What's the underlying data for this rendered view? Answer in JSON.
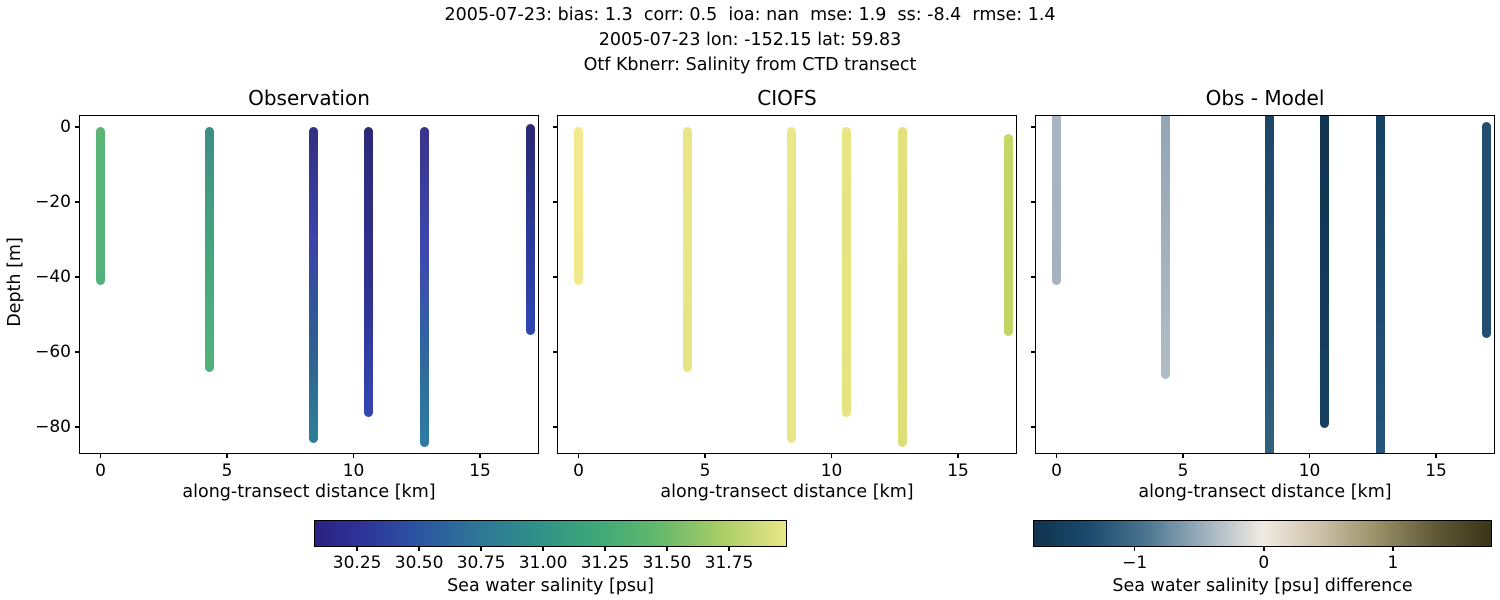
{
  "header": {
    "line1": "2005-07-23: bias: 1.3  corr: 0.5  ioa: nan  mse: 1.9  ss: -8.4  rmse: 1.4",
    "line2": "2005-07-23 lon: -152.15 lat: 59.83",
    "line3": "Otf Kbnerr: Salinity from CTD transect"
  },
  "chart_data": {
    "type": "scatter",
    "description": "Three-panel CTD transect salinity section: observed salinity, CIOFS model salinity, and observation-minus-model difference, as vertical depth profiles along transect distance.",
    "axes": {
      "xlabel": "along-transect distance [km]",
      "ylabel": "Depth [m]",
      "xlim": [
        -0.81,
        17.29
      ],
      "ylim_top": 2.93,
      "ylim_bottom": -86.9,
      "xticks": [
        {
          "v": 0,
          "label": "0"
        },
        {
          "v": 5,
          "label": "5"
        },
        {
          "v": 10,
          "label": "10"
        },
        {
          "v": 15,
          "label": "15"
        }
      ],
      "yticks": [
        {
          "v": 0,
          "label": "0"
        },
        {
          "v": -20,
          "label": "−20"
        },
        {
          "v": -40,
          "label": "−40"
        },
        {
          "v": -60,
          "label": "−60"
        },
        {
          "v": -80,
          "label": "−80"
        }
      ],
      "grid": false
    },
    "panels": [
      {
        "title": "Observation",
        "show_ytick_labels": true,
        "columns": [
          {
            "x_km": 0.0,
            "top_m": -1.3,
            "bottom_m": -41,
            "gradient": [
              [
                0,
                "#5cb576"
              ],
              [
                1,
                "#53b17b"
              ]
            ]
          },
          {
            "x_km": 4.3,
            "top_m": -1.3,
            "bottom_m": -64,
            "gradient": [
              [
                0,
                "#3e8d85"
              ],
              [
                0.5,
                "#45a67e"
              ],
              [
                1,
                "#51b37a"
              ]
            ]
          },
          {
            "x_km": 8.4,
            "top_m": -1.3,
            "bottom_m": -83,
            "gradient": [
              [
                0,
                "#343081"
              ],
              [
                0.35,
                "#3a43a9"
              ],
              [
                0.7,
                "#2e6090"
              ],
              [
                1,
                "#2f8099"
              ]
            ]
          },
          {
            "x_km": 10.6,
            "top_m": -1.3,
            "bottom_m": -76,
            "gradient": [
              [
                0,
                "#2c2a78"
              ],
              [
                0.55,
                "#2e3190"
              ],
              [
                1,
                "#3546b2"
              ]
            ]
          },
          {
            "x_km": 12.8,
            "top_m": -1.3,
            "bottom_m": -84,
            "gradient": [
              [
                0,
                "#38348b"
              ],
              [
                0.4,
                "#3e49b0"
              ],
              [
                0.8,
                "#2d6f9b"
              ],
              [
                1,
                "#2f7ca5"
              ]
            ]
          },
          {
            "x_km": 17.0,
            "top_m": -0.5,
            "bottom_m": -54.3,
            "gradient": [
              [
                0,
                "#2b2a72"
              ],
              [
                0.55,
                "#2b3a9a"
              ],
              [
                1,
                "#2e47b0"
              ]
            ]
          }
        ]
      },
      {
        "title": "CIOFS",
        "show_ytick_labels": false,
        "columns": [
          {
            "x_km": 0.0,
            "top_m": -1.3,
            "bottom_m": -41,
            "gradient": [
              [
                0,
                "#f3ea90"
              ],
              [
                1,
                "#f1e98e"
              ]
            ]
          },
          {
            "x_km": 4.3,
            "top_m": -1.3,
            "bottom_m": -64,
            "gradient": [
              [
                0,
                "#eae687"
              ],
              [
                1,
                "#e8e584"
              ]
            ]
          },
          {
            "x_km": 8.4,
            "top_m": -1.3,
            "bottom_m": -83,
            "gradient": [
              [
                0,
                "#ece88a"
              ],
              [
                1,
                "#eae687"
              ]
            ]
          },
          {
            "x_km": 10.6,
            "top_m": -1.3,
            "bottom_m": -76,
            "gradient": [
              [
                0,
                "#e9e584"
              ],
              [
                1,
                "#e7e381"
              ]
            ]
          },
          {
            "x_km": 12.8,
            "top_m": -1.3,
            "bottom_m": -84,
            "gradient": [
              [
                0,
                "#e2e17d"
              ],
              [
                1,
                "#dedf79"
              ]
            ]
          },
          {
            "x_km": 17.0,
            "top_m": -3.2,
            "bottom_m": -54.5,
            "gradient": [
              [
                0,
                "#c6d667"
              ],
              [
                1,
                "#c2d463"
              ]
            ]
          }
        ]
      },
      {
        "title": "Obs - Model",
        "show_ytick_labels": false,
        "columns": [
          {
            "x_km": 0.0,
            "top_m": 2.93,
            "bottom_m": -41,
            "gradient": [
              [
                0,
                "#a9b5c1"
              ],
              [
                1,
                "#a5b2bf"
              ]
            ]
          },
          {
            "x_km": 4.3,
            "top_m": 2.93,
            "bottom_m": -66,
            "gradient": [
              [
                0,
                "#92a6b5"
              ],
              [
                1,
                "#b1bcc4"
              ]
            ]
          },
          {
            "x_km": 8.4,
            "top_m": 2.93,
            "bottom_m": -86.9,
            "gradient": [
              [
                0,
                "#1c4466"
              ],
              [
                1,
                "#32617e"
              ]
            ]
          },
          {
            "x_km": 10.6,
            "top_m": 2.93,
            "bottom_m": -79,
            "gradient": [
              [
                0,
                "#113450"
              ],
              [
                1,
                "#174161"
              ]
            ]
          },
          {
            "x_km": 12.8,
            "top_m": 2.93,
            "bottom_m": -86.9,
            "gradient": [
              [
                0,
                "#174161"
              ],
              [
                1,
                "#26547a"
              ]
            ]
          },
          {
            "x_km": 17.0,
            "top_m": 0.0,
            "bottom_m": -55,
            "gradient": [
              [
                0,
                "#214e6d"
              ],
              [
                1,
                "#224f6f"
              ]
            ]
          }
        ]
      }
    ],
    "colorbars": [
      {
        "label": "Sea water salinity [psu]",
        "vmin": 30.08,
        "vmax": 31.98,
        "ticks": [
          {
            "v": 30.25,
            "label": "30.25"
          },
          {
            "v": 30.5,
            "label": "30.50"
          },
          {
            "v": 30.75,
            "label": "30.75"
          },
          {
            "v": 31.0,
            "label": "31.00"
          },
          {
            "v": 31.25,
            "label": "31.25"
          },
          {
            "v": 31.5,
            "label": "31.50"
          },
          {
            "v": 31.75,
            "label": "31.75"
          }
        ],
        "stops": [
          [
            0,
            "#2b2280"
          ],
          [
            0.09,
            "#2e3197"
          ],
          [
            0.2,
            "#2b4fa2"
          ],
          [
            0.33,
            "#2e7298"
          ],
          [
            0.46,
            "#2f8e8a"
          ],
          [
            0.6,
            "#3ea878"
          ],
          [
            0.73,
            "#64b96c"
          ],
          [
            0.86,
            "#a8cc66"
          ],
          [
            1,
            "#eae688"
          ]
        ]
      },
      {
        "label": "Sea water salinity [psu] difference",
        "vmin": -1.78,
        "vmax": 1.76,
        "ticks": [
          {
            "v": -1,
            "label": "−1"
          },
          {
            "v": 0,
            "label": "0"
          },
          {
            "v": 1,
            "label": "1"
          }
        ],
        "stops": [
          [
            0,
            "#10334e"
          ],
          [
            0.12,
            "#1a4a6d"
          ],
          [
            0.25,
            "#4d7792"
          ],
          [
            0.38,
            "#a2b4c0"
          ],
          [
            0.5,
            "#f0ebe2"
          ],
          [
            0.62,
            "#cfc3ab"
          ],
          [
            0.75,
            "#9a9068"
          ],
          [
            0.88,
            "#5f5836"
          ],
          [
            1,
            "#3a3518"
          ]
        ]
      }
    ]
  }
}
